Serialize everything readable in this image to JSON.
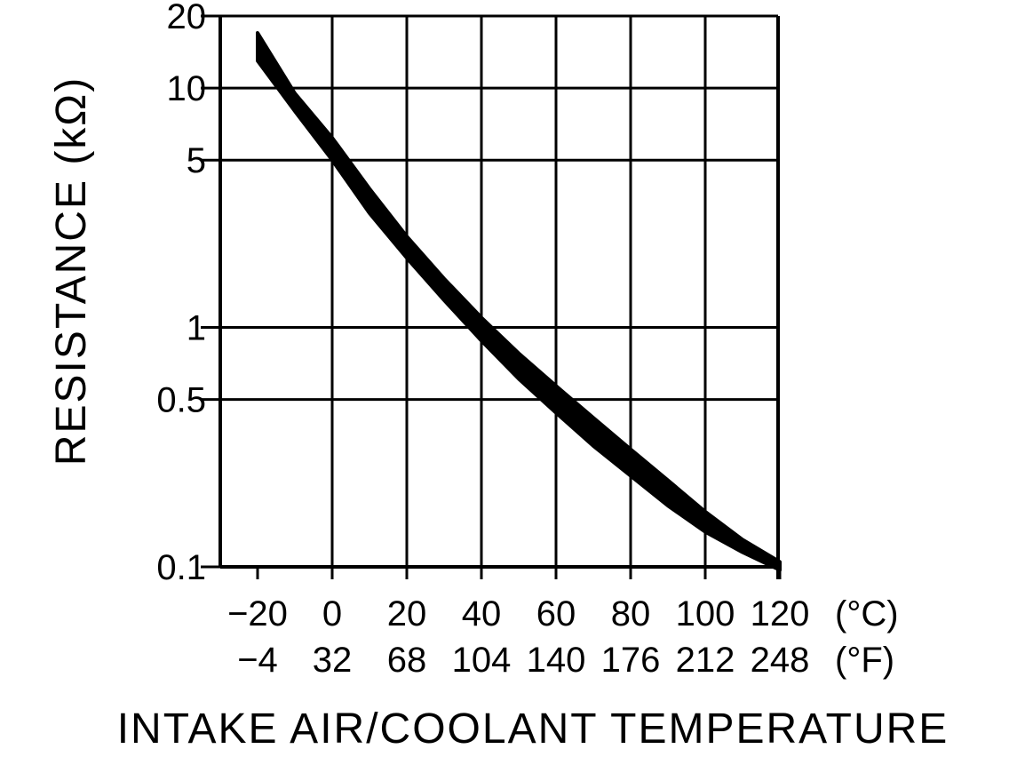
{
  "chart_data": {
    "type": "line",
    "xlabel": "INTAKE AIR/COOLANT TEMPERATURE",
    "ylabel": "RESISTANCE (kΩ)",
    "y_scale": "log",
    "grid": true,
    "xlim": [
      -20,
      120
    ],
    "ylim": [
      0.1,
      20
    ],
    "x_ticks_c": [
      -20,
      0,
      20,
      40,
      60,
      80,
      100,
      120
    ],
    "x_tick_labels_c": [
      "−20",
      "0",
      "20",
      "40",
      "60",
      "80",
      "100",
      "120"
    ],
    "x_unit_c": "(°C)",
    "x_tick_labels_f": [
      "−4",
      "32",
      "68",
      "104",
      "140",
      "176",
      "212",
      "248"
    ],
    "x_unit_f": "(°F)",
    "y_ticks": [
      0.1,
      0.5,
      1,
      5,
      10,
      20
    ],
    "y_tick_labels": [
      "0.1",
      "0.5",
      "1",
      "5",
      "10",
      "20"
    ],
    "band_color": "#000000",
    "series": [
      {
        "x": [
          -20,
          -10,
          0,
          10,
          20,
          30,
          40,
          50,
          60,
          70,
          80,
          90,
          100,
          110,
          120
        ],
        "upper": [
          17,
          9.5,
          6.2,
          3.8,
          2.4,
          1.6,
          1.1,
          0.78,
          0.57,
          0.42,
          0.31,
          0.23,
          0.17,
          0.13,
          0.105
        ],
        "lower": [
          13,
          8.0,
          5.0,
          3.0,
          1.95,
          1.3,
          0.88,
          0.61,
          0.44,
          0.32,
          0.24,
          0.18,
          0.14,
          0.115,
          0.097
        ]
      }
    ]
  }
}
